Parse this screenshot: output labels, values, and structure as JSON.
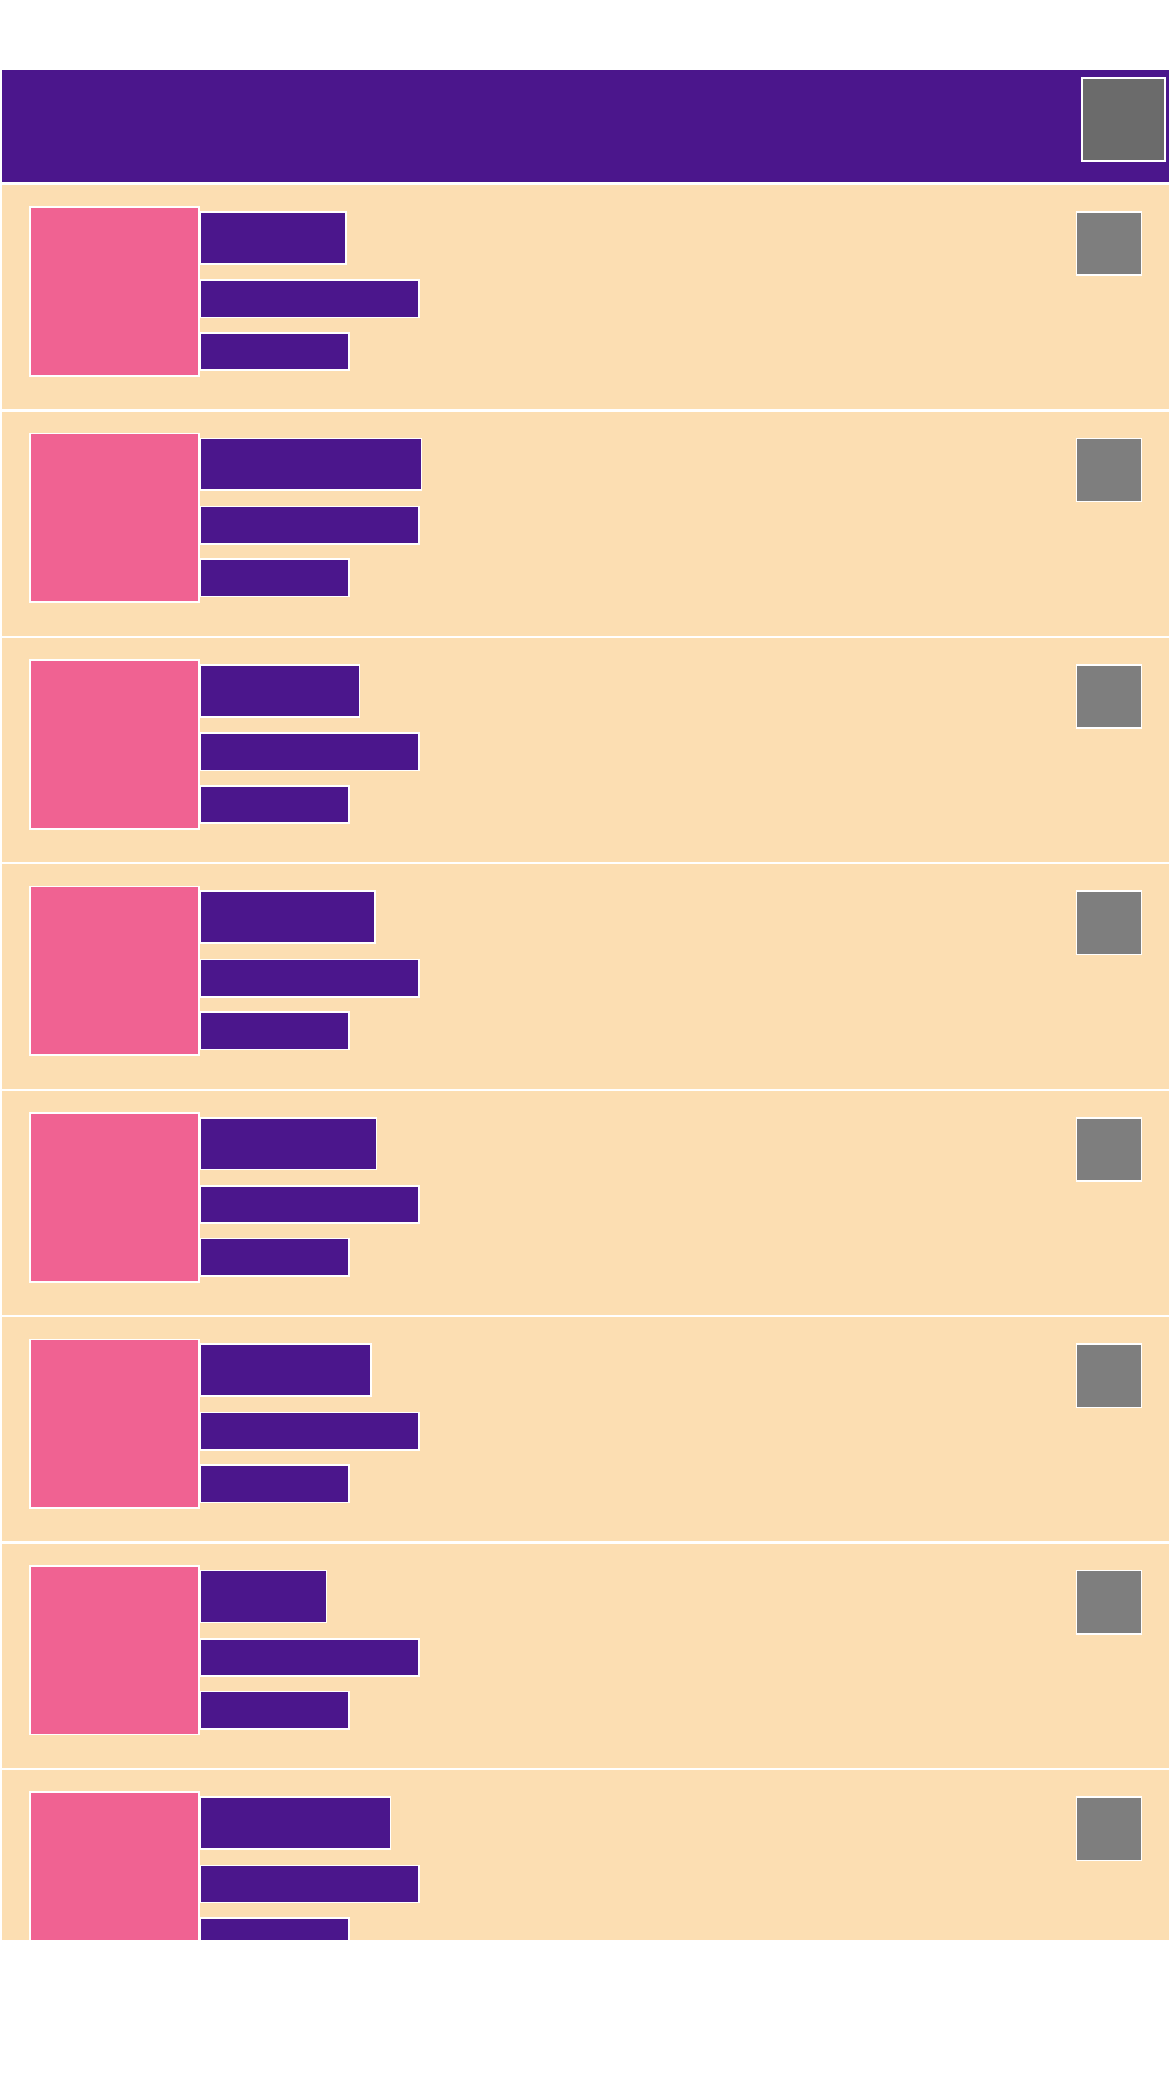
{
  "colors": {
    "toolbar_bg": "#4b168c",
    "toolbar_action": "#6b6b6b",
    "row_bg": "#fcdeb2",
    "row_divider": "#ffffff",
    "thumbnail": "#f06292",
    "text_block": "#4b168c",
    "row_action": "#7e7e7e"
  },
  "toolbar": {
    "action_icon": "square-icon"
  },
  "list": {
    "items": [
      {
        "title": "",
        "subtitle": "",
        "meta": "",
        "action_icon": "square-icon"
      },
      {
        "title": "",
        "subtitle": "",
        "meta": "",
        "action_icon": "square-icon"
      },
      {
        "title": "",
        "subtitle": "",
        "meta": "",
        "action_icon": "square-icon"
      },
      {
        "title": "",
        "subtitle": "",
        "meta": "",
        "action_icon": "square-icon"
      },
      {
        "title": "",
        "subtitle": "",
        "meta": "",
        "action_icon": "square-icon"
      },
      {
        "title": "",
        "subtitle": "",
        "meta": "",
        "action_icon": "square-icon"
      },
      {
        "title": "",
        "subtitle": "",
        "meta": "",
        "action_icon": "square-icon"
      },
      {
        "title": "",
        "subtitle": "",
        "meta": "",
        "action_icon": "square-icon"
      }
    ]
  }
}
